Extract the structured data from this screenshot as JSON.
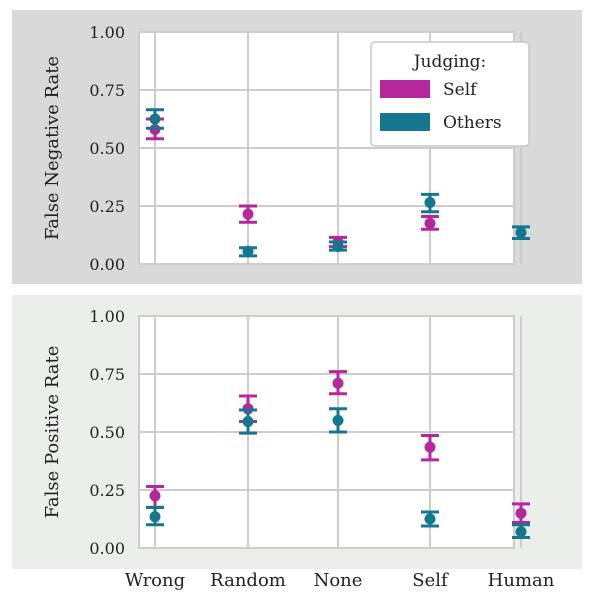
{
  "chart_data": [
    {
      "type": "scatter",
      "panel": "top",
      "ylabel": "False Negative Rate",
      "categories": [
        "Wrong",
        "Random",
        "None",
        "Self",
        "Human"
      ],
      "ylim": [
        0,
        1
      ],
      "yticks": [
        "0.00",
        "0.25",
        "0.50",
        "0.75",
        "1.00"
      ],
      "grid": true,
      "background": "#d9d9d9",
      "legend": {
        "title": "Judging:",
        "placement": "top-right",
        "entries": [
          "Self",
          "Others"
        ]
      },
      "series": [
        {
          "name": "Self",
          "color": "#b5279c",
          "values": [
            0.58,
            0.215,
            0.095,
            0.175,
            null
          ],
          "err_low": [
            0.54,
            0.18,
            0.075,
            0.15,
            null
          ],
          "err_high": [
            0.625,
            0.25,
            0.115,
            0.205,
            null
          ]
        },
        {
          "name": "Others",
          "color": "#13788f",
          "values": [
            0.625,
            0.055,
            0.075,
            0.265,
            0.135
          ],
          "err_low": [
            0.585,
            0.035,
            0.06,
            0.225,
            0.11
          ],
          "err_high": [
            0.665,
            0.07,
            0.095,
            0.3,
            0.16
          ]
        }
      ]
    },
    {
      "type": "scatter",
      "panel": "bottom",
      "ylabel": "False Positive Rate",
      "categories": [
        "Wrong",
        "Random",
        "None",
        "Self",
        "Human"
      ],
      "ylim": [
        0,
        1
      ],
      "yticks": [
        "0.00",
        "0.25",
        "0.50",
        "0.75",
        "1.00"
      ],
      "grid": true,
      "background": "#eceeec",
      "series": [
        {
          "name": "Self",
          "color": "#b5279c",
          "values": [
            0.225,
            0.6,
            0.71,
            0.435,
            0.15
          ],
          "err_low": [
            0.175,
            0.545,
            0.665,
            0.38,
            0.11
          ],
          "err_high": [
            0.265,
            0.655,
            0.76,
            0.485,
            0.19
          ]
        },
        {
          "name": "Others",
          "color": "#13788f",
          "values": [
            0.135,
            0.545,
            0.55,
            0.125,
            0.07
          ],
          "err_low": [
            0.1,
            0.495,
            0.5,
            0.095,
            0.045
          ],
          "err_high": [
            0.175,
            0.595,
            0.6,
            0.155,
            0.1
          ]
        }
      ]
    }
  ]
}
